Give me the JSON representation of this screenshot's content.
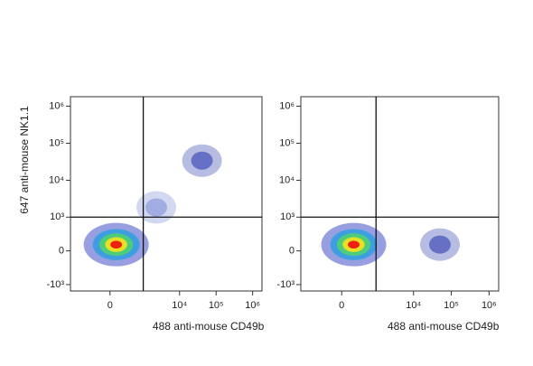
{
  "chart_data": [
    {
      "type": "scatter",
      "xlabel": "488 anti-mouse CD49b",
      "ylabel": "647 anti-mouse NK1.1",
      "x": [
        100,
        41000,
        2300
      ],
      "values": [
        100,
        34000,
        1850
      ],
      "colors": [
        "#f02010",
        "#3040b0",
        "#8090d8"
      ],
      "gates": {
        "x": 1000,
        "y": 1000
      },
      "xlim": [
        -1500,
        1800000
      ],
      "ylim": [
        -1500,
        1800000
      ],
      "scale": "biexponential",
      "xticks": [
        0,
        {
          "value": 10000,
          "label": "10⁴"
        },
        {
          "value": 100000,
          "label": "10⁵"
        },
        {
          "value": 1000000,
          "label": "10⁶"
        }
      ],
      "yticks": [
        {
          "value": -1000,
          "label": "-10³"
        },
        0,
        {
          "value": 1000,
          "label": "10³"
        },
        {
          "value": 10000,
          "label": "10⁴"
        },
        {
          "value": 100000,
          "label": "10⁵"
        },
        {
          "value": 1000000,
          "label": "10⁶"
        }
      ]
    },
    {
      "type": "scatter",
      "xlabel": "488 anti-mouse CD49b",
      "x": [
        200,
        50000
      ],
      "values": [
        100,
        100
      ],
      "colors": [
        "#f02010",
        "#3040b0"
      ],
      "gates": {
        "x": 1000,
        "y": 1000
      },
      "xlim": [
        -1500,
        1800000
      ],
      "ylim": [
        -1500,
        1800000
      ],
      "scale": "biexponential",
      "xticks": [
        0,
        {
          "value": 10000,
          "label": "10⁴"
        },
        {
          "value": 100000,
          "label": "10⁵"
        },
        {
          "value": 1000000,
          "label": "10⁶"
        }
      ],
      "yticks": [
        {
          "value": -1000,
          "label": "-10³"
        },
        0,
        {
          "value": 1000,
          "label": "10³"
        },
        {
          "value": 10000,
          "label": "10⁴"
        },
        {
          "value": 100000,
          "label": "10⁵"
        },
        {
          "value": 1000000,
          "label": "10⁶"
        }
      ]
    }
  ]
}
